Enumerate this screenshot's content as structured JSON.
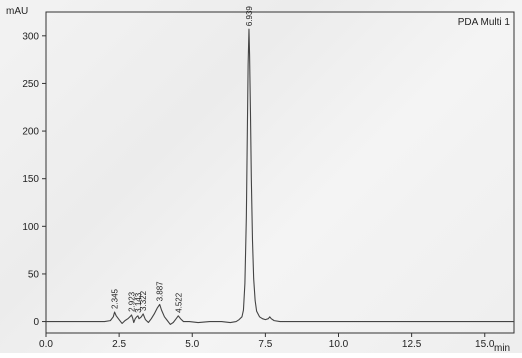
{
  "chart_data": {
    "type": "line",
    "title": "",
    "xlabel": "",
    "ylabel": "",
    "x_unit": "min",
    "y_unit": "mAU",
    "xlim": [
      0,
      16
    ],
    "ylim": [
      -12,
      325
    ],
    "x_ticks": [
      0.0,
      2.5,
      5.0,
      7.5,
      10.0,
      12.5,
      15.0
    ],
    "x_tick_labels": [
      "0.0",
      "2.5",
      "5.0",
      "7.5",
      "10.0",
      "12.5",
      "15.0"
    ],
    "y_ticks": [
      0,
      50,
      100,
      150,
      200,
      250,
      300
    ],
    "y_tick_labels": [
      "0",
      "50",
      "100",
      "150",
      "200",
      "250",
      "300"
    ],
    "grid": false,
    "legend": {
      "position": "top-right",
      "entries": [
        "PDA Multi 1"
      ]
    },
    "series": [
      {
        "name": "PDA Multi 1",
        "color": "#444444",
        "x": [
          0.0,
          1.0,
          2.0,
          2.2,
          2.3,
          2.345,
          2.4,
          2.5,
          2.6,
          2.7,
          2.8,
          2.9,
          2.923,
          2.96,
          3.0,
          3.05,
          3.1,
          3.143,
          3.18,
          3.22,
          3.26,
          3.3,
          3.322,
          3.36,
          3.4,
          3.5,
          3.6,
          3.7,
          3.8,
          3.887,
          3.95,
          4.05,
          4.15,
          4.25,
          4.35,
          4.45,
          4.522,
          4.6,
          4.7,
          4.9,
          5.2,
          5.6,
          6.0,
          6.3,
          6.5,
          6.6,
          6.7,
          6.75,
          6.8,
          6.85,
          6.88,
          6.91,
          6.939,
          6.96,
          6.99,
          7.02,
          7.06,
          7.1,
          7.15,
          7.2,
          7.3,
          7.4,
          7.5,
          7.6,
          7.65,
          7.7,
          7.8,
          8.0,
          9.0,
          10.0,
          12.0,
          14.0,
          16.0
        ],
        "y": [
          0,
          0,
          0,
          1,
          5,
          10,
          6,
          2,
          -2,
          1,
          3,
          6,
          7,
          4,
          -1,
          3,
          5,
          6,
          3,
          4,
          5,
          7,
          8,
          5,
          2,
          -1,
          3,
          8,
          14,
          18,
          12,
          5,
          1,
          -3,
          -1,
          3,
          6,
          3,
          0,
          0,
          -1,
          0,
          0,
          -1,
          0,
          2,
          5,
          12,
          40,
          110,
          190,
          270,
          307,
          280,
          220,
          150,
          85,
          45,
          22,
          11,
          5,
          3,
          2,
          3,
          5,
          3,
          1,
          0,
          0,
          0,
          0,
          0,
          0
        ]
      }
    ],
    "annotations": [
      {
        "x": 2.345,
        "y": 10,
        "text": "2.345"
      },
      {
        "x": 2.923,
        "y": 7,
        "text": "2.923"
      },
      {
        "x": 3.143,
        "y": 6,
        "text": "3.143"
      },
      {
        "x": 3.322,
        "y": 8,
        "text": "3.322"
      },
      {
        "x": 3.887,
        "y": 18,
        "text": "3.887"
      },
      {
        "x": 4.522,
        "y": 6,
        "text": "4.522"
      },
      {
        "x": 6.939,
        "y": 307,
        "text": "6.939"
      }
    ]
  }
}
